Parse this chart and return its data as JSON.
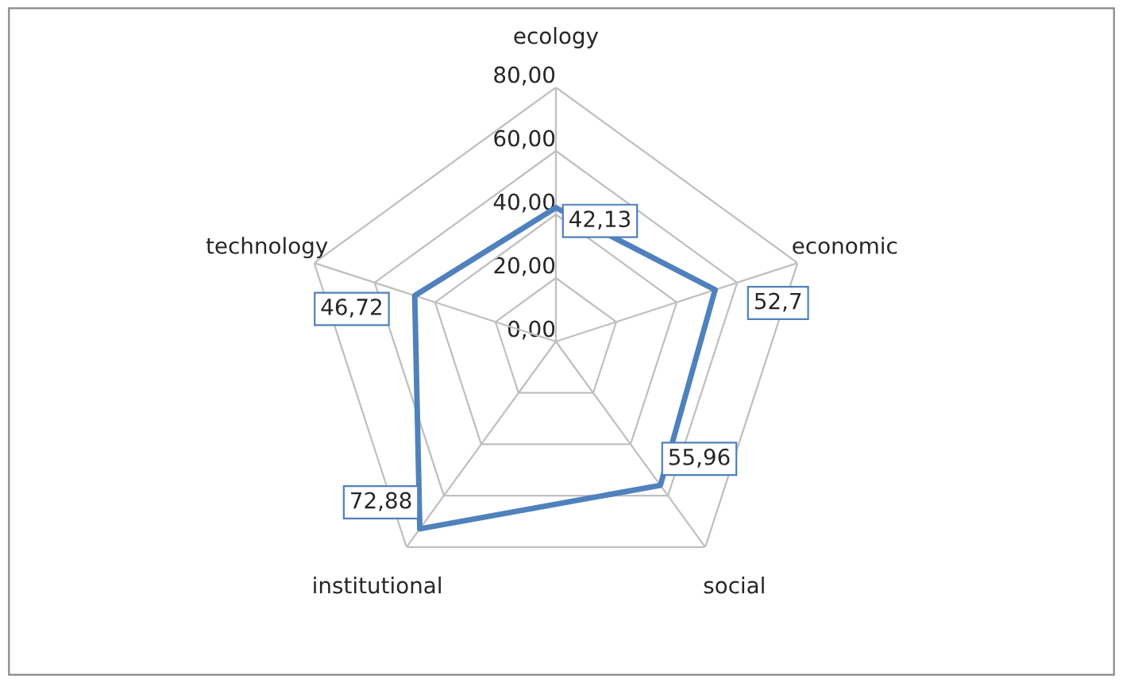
{
  "chart_data": {
    "type": "radar",
    "categories": [
      "ecology",
      "economic",
      "social",
      "institutional",
      "technology"
    ],
    "series": [
      {
        "color": "#4f81bd",
        "values": [
          42.13,
          52.7,
          55.96,
          72.88,
          46.72
        ],
        "value_labels": [
          "42,13",
          "52,7",
          "55,96",
          "72,88",
          "46,72"
        ]
      }
    ],
    "ylim": [
      0,
      80
    ],
    "yticks": [
      {
        "value": 0,
        "label": "0,00"
      },
      {
        "value": 20,
        "label": "20,00"
      },
      {
        "value": 40,
        "label": "40,00"
      },
      {
        "value": 60,
        "label": "60,00"
      },
      {
        "value": 80,
        "label": "80,00"
      }
    ],
    "grid": true,
    "marker": "none",
    "line_style": "solid"
  }
}
